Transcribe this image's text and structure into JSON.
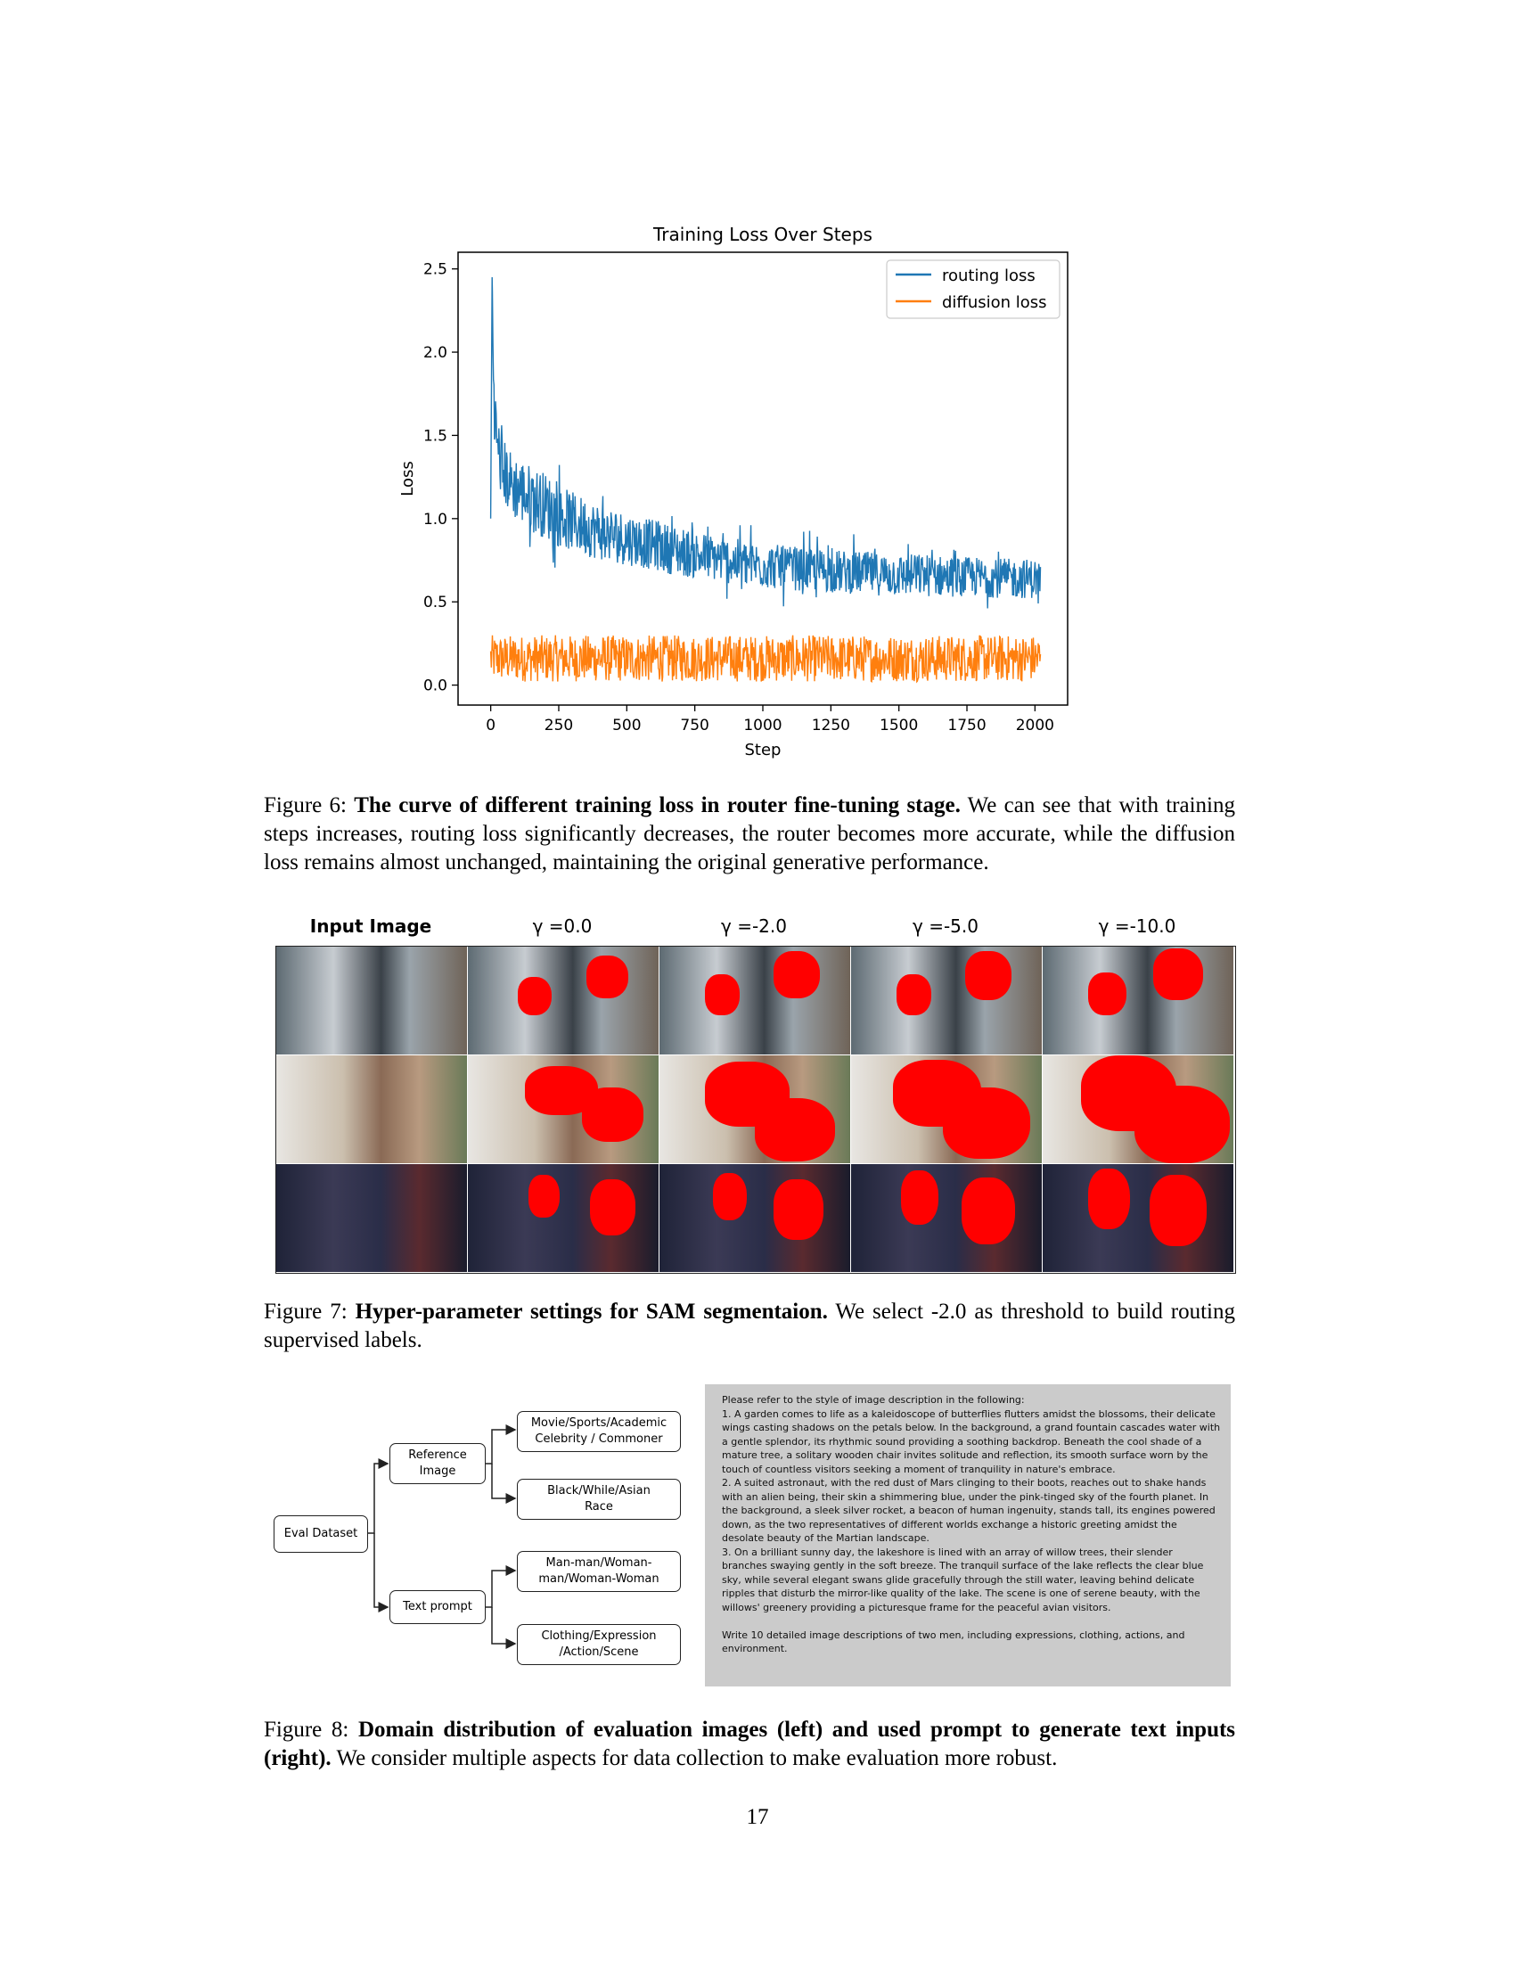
{
  "chart_data": {
    "type": "line",
    "title": "Training Loss Over Steps",
    "xlabel": "Step",
    "ylabel": "Loss",
    "xlim": [
      -120,
      2120
    ],
    "ylim": [
      -0.12,
      2.6
    ],
    "xticks": [
      0,
      250,
      500,
      750,
      1000,
      1250,
      1500,
      1750,
      2000
    ],
    "yticks": [
      0.0,
      0.5,
      1.0,
      1.5,
      2.0,
      2.5
    ],
    "xtick_labels": [
      "0",
      "250",
      "500",
      "750",
      "1000",
      "1250",
      "1500",
      "1750",
      "2000"
    ],
    "ytick_labels": [
      "0.0",
      "0.5",
      "1.0",
      "1.5",
      "2.0",
      "2.5"
    ],
    "legend_position": "top-right",
    "grid": false,
    "series": [
      {
        "name": "routing loss",
        "color": "#1f77b4",
        "x": [
          0,
          5,
          10,
          15,
          20,
          30,
          40,
          60,
          80,
          100,
          150,
          200,
          250,
          300,
          400,
          500,
          600,
          700,
          800,
          900,
          1000,
          1100,
          1200,
          1300,
          1400,
          1500,
          1600,
          1700,
          1800,
          1900,
          2000,
          2020
        ],
        "values": [
          1.0,
          2.45,
          1.9,
          1.65,
          1.5,
          1.4,
          1.3,
          1.25,
          1.2,
          1.18,
          1.12,
          1.08,
          1.02,
          0.98,
          0.92,
          0.88,
          0.84,
          0.8,
          0.77,
          0.74,
          0.72,
          0.7,
          0.69,
          0.68,
          0.67,
          0.66,
          0.66,
          0.65,
          0.65,
          0.64,
          0.64,
          0.64
        ],
        "noise_amplitude": [
          0.0,
          0.0,
          0.25,
          0.22,
          0.2,
          0.2,
          0.2,
          0.2,
          0.2,
          0.2,
          0.2,
          0.2,
          0.19,
          0.18,
          0.17,
          0.16,
          0.15,
          0.15,
          0.14,
          0.14,
          0.14,
          0.13,
          0.13,
          0.13,
          0.13,
          0.13,
          0.13,
          0.12,
          0.12,
          0.12,
          0.12,
          0.1
        ]
      },
      {
        "name": "diffusion loss",
        "color": "#ff7f0e",
        "x": [
          0,
          2020
        ],
        "values": [
          0.16,
          0.16
        ],
        "range": [
          0.02,
          0.3
        ]
      }
    ]
  },
  "fig6_caption": {
    "label": "Figure 6:",
    "bold": "The curve of different training loss in router fine-tuning stage.",
    "rest": "We can see that with training steps increases, routing loss significantly decreases, the router becomes more accurate, while the diffusion loss remains almost unchanged, maintaining the original generative performance."
  },
  "fig7": {
    "headers": [
      "Input Image",
      "γ =0.0",
      "γ =-2.0",
      "γ =-5.0",
      "γ =-10.0"
    ],
    "mask_color": "#ff0000"
  },
  "fig7_caption": {
    "label": "Figure 7:",
    "bold": "Hyper-parameter settings for SAM segmentaion.",
    "rest": "We select -2.0 as threshold to build routing supervised labels."
  },
  "fig8": {
    "root": "Eval Dataset",
    "branch1": "Reference\nImage",
    "branch2": "Text prompt",
    "leaf1": "Movie/Sports/Academic\nCelebrity / Commoner",
    "leaf2": "Black/While/Asian\nRace",
    "leaf3": "Man-man/Woman-\nman/Woman-Woman",
    "leaf4": "Clothing/Expression\n/Action/Scene",
    "prompt": "Please refer to the style of image description in the following:\n1. A garden comes to life as a kaleidoscope of butterflies flutters amidst the blossoms, their delicate wings casting shadows on the petals below. In the background, a grand fountain cascades water with a gentle splendor, its rhythmic sound providing a soothing backdrop. Beneath the cool shade of a mature tree, a solitary wooden chair invites solitude and reflection, its smooth surface worn by the touch of countless visitors seeking a moment of tranquility in nature's embrace.\n2. A suited astronaut, with the red dust of Mars clinging to their boots, reaches out to shake hands with an alien being, their skin a shimmering blue, under the pink-tinged sky of the fourth planet. In the background, a sleek silver rocket, a beacon of human ingenuity, stands tall, its engines powered down, as the two representatives of different worlds exchange a historic greeting amidst the desolate beauty of the Martian landscape.\n3. On a brilliant sunny day, the lakeshore is lined with an array of willow trees, their slender branches swaying gently in the soft breeze. The tranquil surface of the lake reflects the clear blue sky, while several elegant swans glide gracefully through the still water, leaving behind delicate ripples that disturb the mirror-like quality of the lake. The scene is one of serene beauty, with the willows' greenery providing a picturesque frame for the peaceful avian visitors.\n\nWrite 10 detailed image descriptions of two men, including expressions, clothing, actions, and environment."
  },
  "fig8_caption": {
    "label": "Figure 8:",
    "bold": "Domain distribution of evaluation images (left) and used prompt to generate text inputs (right).",
    "rest": "We consider multiple aspects for data collection to make evaluation more robust."
  },
  "page_number": "17"
}
